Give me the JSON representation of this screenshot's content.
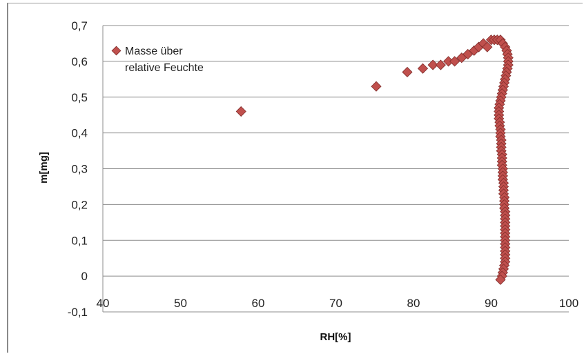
{
  "chart_data": {
    "type": "scatter",
    "title": "",
    "xlabel": "RH[%]",
    "ylabel": "m[mg]",
    "xlim": [
      40,
      100
    ],
    "ylim": [
      -0.1,
      0.7
    ],
    "x_ticks": [
      "40",
      "50",
      "60",
      "70",
      "80",
      "90",
      "100"
    ],
    "y_ticks": [
      "-0,1",
      "0",
      "0,1",
      "0,2",
      "0,3",
      "0,4",
      "0,5",
      "0,6",
      "0,7"
    ],
    "grid": "horizontal",
    "legend": {
      "placement": "top-left",
      "lines": [
        "Masse über",
        "relative Feuchte"
      ]
    },
    "series": [
      {
        "name": "Masse über relative Feuchte",
        "marker": "diamond",
        "color": "#c0504d",
        "points": [
          [
            57.8,
            0.46
          ],
          [
            75.2,
            0.53
          ],
          [
            79.2,
            0.57
          ],
          [
            81.2,
            0.58
          ],
          [
            82.5,
            0.59
          ],
          [
            83.5,
            0.59
          ],
          [
            84.5,
            0.6
          ],
          [
            85.3,
            0.6
          ],
          [
            86.2,
            0.61
          ],
          [
            87.0,
            0.62
          ],
          [
            87.8,
            0.63
          ],
          [
            88.4,
            0.64
          ],
          [
            89.0,
            0.65
          ],
          [
            89.5,
            0.64
          ],
          [
            90.0,
            0.66
          ],
          [
            90.4,
            0.66
          ],
          [
            90.8,
            0.66
          ],
          [
            91.2,
            0.66
          ],
          [
            91.5,
            0.65
          ],
          [
            91.8,
            0.64
          ],
          [
            92.0,
            0.63
          ],
          [
            92.1,
            0.62
          ],
          [
            92.2,
            0.61
          ],
          [
            92.2,
            0.6
          ],
          [
            92.2,
            0.59
          ],
          [
            92.1,
            0.58
          ],
          [
            92.0,
            0.57
          ],
          [
            91.9,
            0.56
          ],
          [
            91.8,
            0.55
          ],
          [
            91.7,
            0.54
          ],
          [
            91.6,
            0.53
          ],
          [
            91.5,
            0.52
          ],
          [
            91.4,
            0.51
          ],
          [
            91.3,
            0.5
          ],
          [
            91.2,
            0.49
          ],
          [
            91.1,
            0.48
          ],
          [
            91.0,
            0.47
          ],
          [
            91.0,
            0.46
          ],
          [
            91.0,
            0.45
          ],
          [
            91.0,
            0.44
          ],
          [
            91.1,
            0.43
          ],
          [
            91.1,
            0.42
          ],
          [
            91.2,
            0.41
          ],
          [
            91.2,
            0.4
          ],
          [
            91.2,
            0.39
          ],
          [
            91.3,
            0.38
          ],
          [
            91.3,
            0.37
          ],
          [
            91.3,
            0.36
          ],
          [
            91.3,
            0.35
          ],
          [
            91.4,
            0.34
          ],
          [
            91.4,
            0.33
          ],
          [
            91.4,
            0.32
          ],
          [
            91.4,
            0.31
          ],
          [
            91.5,
            0.3
          ],
          [
            91.5,
            0.29
          ],
          [
            91.5,
            0.28
          ],
          [
            91.5,
            0.27
          ],
          [
            91.6,
            0.26
          ],
          [
            91.6,
            0.25
          ],
          [
            91.6,
            0.24
          ],
          [
            91.6,
            0.23
          ],
          [
            91.7,
            0.22
          ],
          [
            91.7,
            0.21
          ],
          [
            91.7,
            0.2
          ],
          [
            91.7,
            0.19
          ],
          [
            91.8,
            0.18
          ],
          [
            91.8,
            0.17
          ],
          [
            91.8,
            0.16
          ],
          [
            91.8,
            0.15
          ],
          [
            91.8,
            0.14
          ],
          [
            91.8,
            0.13
          ],
          [
            91.8,
            0.12
          ],
          [
            91.8,
            0.11
          ],
          [
            91.8,
            0.1
          ],
          [
            91.8,
            0.09
          ],
          [
            91.8,
            0.08
          ],
          [
            91.8,
            0.07
          ],
          [
            91.8,
            0.06
          ],
          [
            91.8,
            0.05
          ],
          [
            91.8,
            0.04
          ],
          [
            91.7,
            0.03
          ],
          [
            91.6,
            0.02
          ],
          [
            91.5,
            0.01
          ],
          [
            91.4,
            0.0
          ],
          [
            91.2,
            -0.01
          ]
        ]
      }
    ]
  }
}
